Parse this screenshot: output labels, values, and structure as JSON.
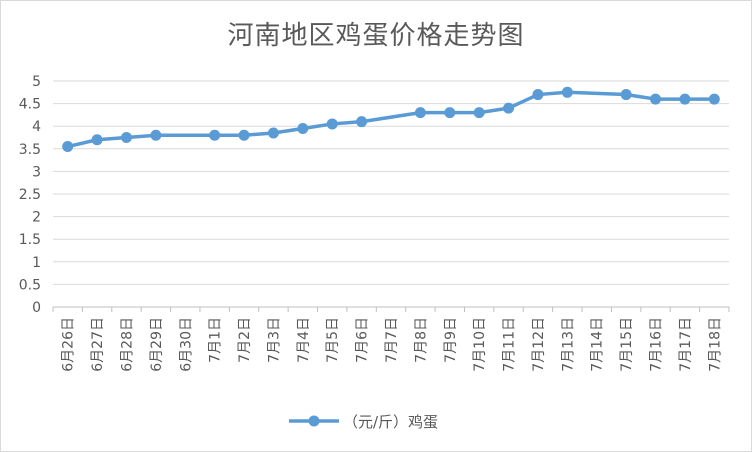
{
  "chart_data": {
    "type": "line",
    "title": "河南地区鸡蛋价格走势图",
    "categories": [
      "6月26日",
      "6月27日",
      "6月28日",
      "6月29日",
      "6月30日",
      "7月1日",
      "7月2日",
      "7月3日",
      "7月4日",
      "7月5日",
      "7月6日",
      "7月7日",
      "7月8日",
      "7月9日",
      "7月10日",
      "7月11日",
      "7月12日",
      "7月13日",
      "7月14日",
      "7月15日",
      "7月16日",
      "7月17日",
      "7月18日"
    ],
    "series": [
      {
        "name": "（元/斤）鸡蛋",
        "color": "#5b9bd5",
        "points": [
          {
            "x": "6月26日",
            "y": 3.55
          },
          {
            "x": "6月27日",
            "y": 3.7
          },
          {
            "x": "6月28日",
            "y": 3.75
          },
          {
            "x": "6月29日",
            "y": 3.8
          },
          {
            "x": "7月1日",
            "y": 3.8
          },
          {
            "x": "7月2日",
            "y": 3.8
          },
          {
            "x": "7月3日",
            "y": 3.85
          },
          {
            "x": "7月4日",
            "y": 3.95
          },
          {
            "x": "7月5日",
            "y": 4.05
          },
          {
            "x": "7月6日",
            "y": 4.1
          },
          {
            "x": "7月8日",
            "y": 4.3
          },
          {
            "x": "7月9日",
            "y": 4.3
          },
          {
            "x": "7月10日",
            "y": 4.3
          },
          {
            "x": "7月11日",
            "y": 4.4
          },
          {
            "x": "7月12日",
            "y": 4.7
          },
          {
            "x": "7月13日",
            "y": 4.75
          },
          {
            "x": "7月15日",
            "y": 4.7
          },
          {
            "x": "7月16日",
            "y": 4.6
          },
          {
            "x": "7月17日",
            "y": 4.6
          },
          {
            "x": "7月18日",
            "y": 4.6
          }
        ]
      }
    ],
    "y_ticks": [
      "0",
      "0.5",
      "1",
      "1.5",
      "2",
      "2.5",
      "3",
      "3.5",
      "4",
      "4.5",
      "5"
    ],
    "ylim": [
      0,
      5
    ],
    "grid": true,
    "legend_position": "bottom"
  }
}
